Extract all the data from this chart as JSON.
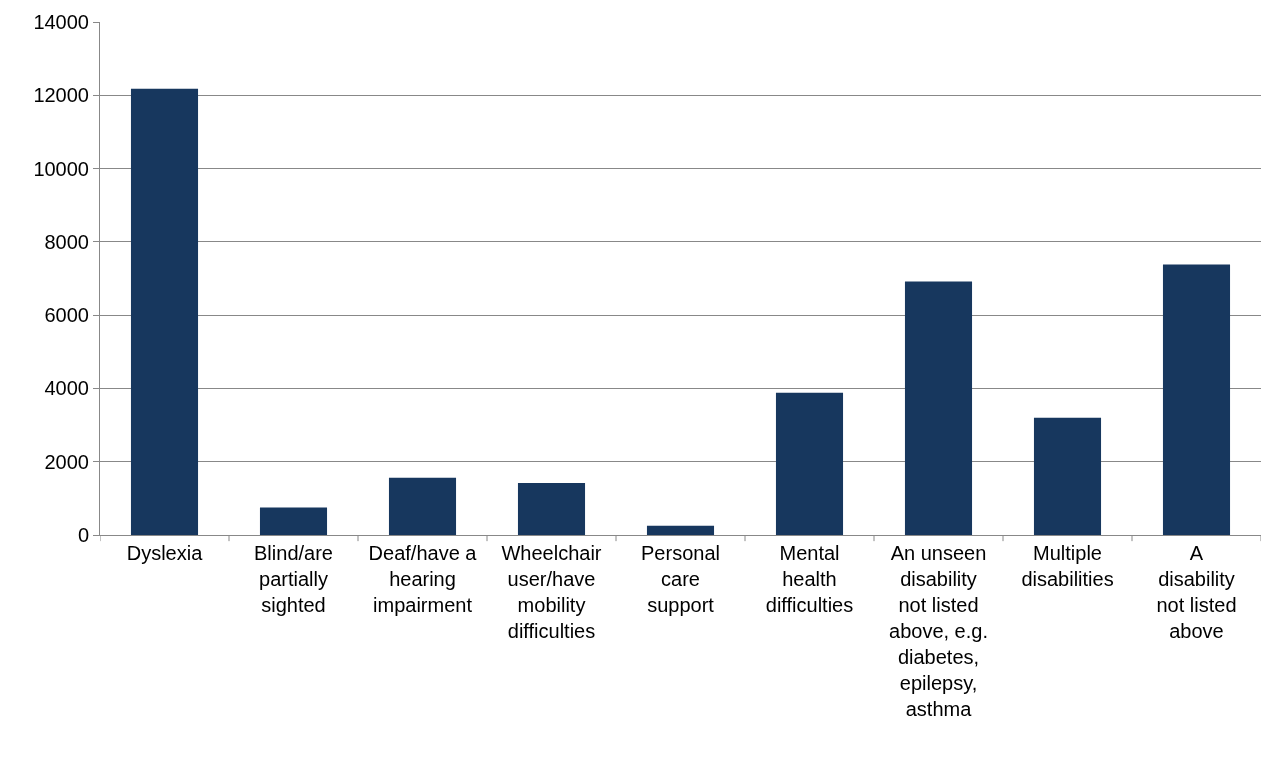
{
  "chart_data": {
    "type": "bar",
    "categories": [
      "Dyslexia",
      "Blind/are partially sighted",
      "Deaf/have a hearing impairment",
      "Wheelchair user/have mobility difficulties",
      "Personal care support",
      "Mental health difficulties",
      "An unseen disability not listed above, e.g. diabetes, epilepsy, asthma",
      "Multiple disabilities",
      "A disability not listed above"
    ],
    "values": [
      12180,
      750,
      1560,
      1420,
      250,
      3880,
      6920,
      3200,
      7380
    ],
    "color": "#17375e",
    "ylim": [
      0,
      14000
    ],
    "yticks": [
      0,
      2000,
      4000,
      6000,
      8000,
      10000,
      12000,
      14000
    ],
    "grid": "y",
    "legend": false
  }
}
